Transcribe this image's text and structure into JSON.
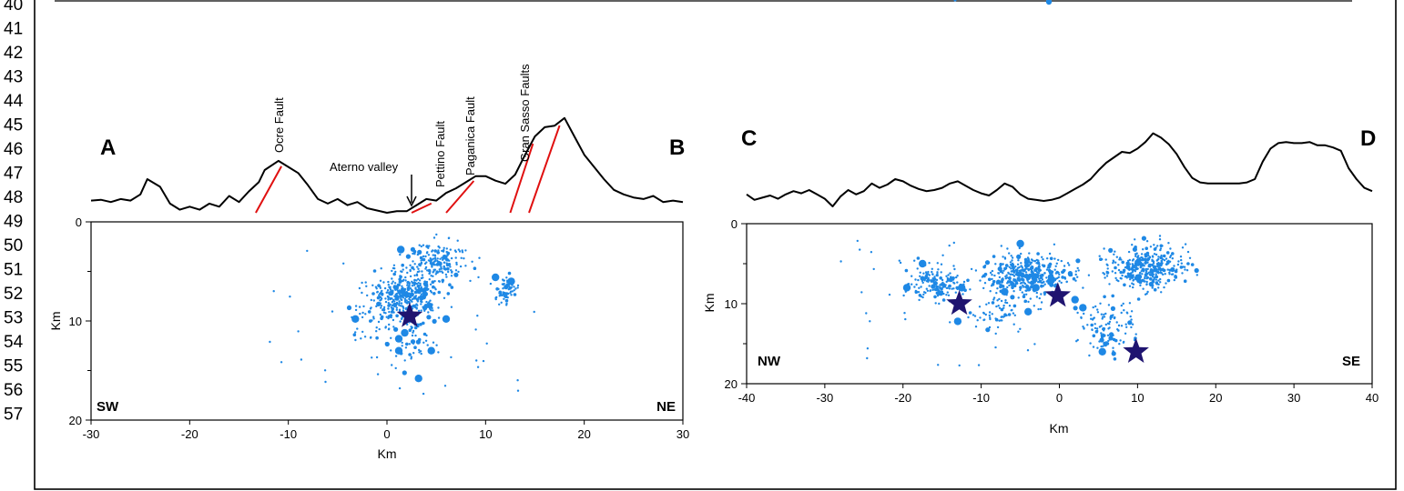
{
  "line_numbers": [
    "40",
    "41",
    "42",
    "43",
    "44",
    "45",
    "46",
    "47",
    "48",
    "49",
    "50",
    "51",
    "52",
    "53",
    "54",
    "55",
    "56",
    "57"
  ],
  "colors": {
    "events": "#1e88e5",
    "mainshock": "#1f1470",
    "fault_trace": "#e01010",
    "profile": "#000000",
    "frame": "#000000"
  },
  "top_fragment": {
    "events": [
      {
        "x": 0,
        "y": 0
      }
    ]
  },
  "chart_data": [
    {
      "type": "scatter",
      "panel": "A-B",
      "start_label": "A",
      "end_label": "B",
      "corner_left": "SW",
      "corner_right": "NE",
      "xlabel": "Km",
      "ylabel": "Km",
      "xlim": [
        -30,
        30
      ],
      "ylim": [
        0,
        20
      ],
      "y_inverted": true,
      "xticks": [
        "-30",
        "-20",
        "-10",
        "0",
        "10",
        "20",
        "30"
      ],
      "yticks": [
        "0",
        "10",
        "20"
      ],
      "grid": false,
      "annotations": {
        "ocre": "Ocre Fault",
        "aterno": "Aterno valley",
        "pettino": "Pettino Fault",
        "paganica": "Paganica Fault",
        "gransasso": "Gran Sasso Faults"
      },
      "fault_traces": [
        {
          "name": "Ocre Fault",
          "x1": -13.3,
          "x2": -10.7
        },
        {
          "name": "Pettino Fault",
          "x1": 2.5,
          "x2": 4.5
        },
        {
          "name": "Paganica Fault",
          "x1": 6.0,
          "x2": 8.8
        },
        {
          "name": "Gran Sasso Faults",
          "x1": 12.5,
          "x2": 14.8
        },
        {
          "name": "Gran Sasso Faults",
          "x1": 14.4,
          "x2": 17.5
        }
      ],
      "aterno_arrow_x": 2.2,
      "topography": [
        [
          -30,
          0.8
        ],
        [
          -29,
          0.85
        ],
        [
          -28,
          0.7
        ],
        [
          -27,
          0.9
        ],
        [
          -26,
          0.8
        ],
        [
          -25,
          1.2
        ],
        [
          -24.3,
          2.2
        ],
        [
          -23,
          1.7
        ],
        [
          -22,
          0.6
        ],
        [
          -21,
          0.2
        ],
        [
          -20,
          0.4
        ],
        [
          -19,
          0.2
        ],
        [
          -18,
          0.6
        ],
        [
          -17,
          0.4
        ],
        [
          -16,
          1.1
        ],
        [
          -15,
          0.7
        ],
        [
          -14,
          1.4
        ],
        [
          -13,
          2.0
        ],
        [
          -12.4,
          2.8
        ],
        [
          -11,
          3.4
        ],
        [
          -10,
          3.0
        ],
        [
          -9,
          2.6
        ],
        [
          -8,
          1.8
        ],
        [
          -7,
          0.9
        ],
        [
          -6,
          0.6
        ],
        [
          -5,
          0.9
        ],
        [
          -4,
          0.5
        ],
        [
          -3,
          0.7
        ],
        [
          -2,
          0.3
        ],
        [
          -1,
          0.15
        ],
        [
          0,
          0.0
        ],
        [
          1,
          0.1
        ],
        [
          2,
          0.1
        ],
        [
          3,
          0.5
        ],
        [
          4,
          0.9
        ],
        [
          5,
          0.8
        ],
        [
          6,
          1.3
        ],
        [
          7,
          1.6
        ],
        [
          8,
          2.0
        ],
        [
          9,
          2.4
        ],
        [
          10,
          2.4
        ],
        [
          11,
          2.1
        ],
        [
          12,
          1.9
        ],
        [
          13,
          2.5
        ],
        [
          14,
          3.8
        ],
        [
          15,
          5.0
        ],
        [
          16,
          5.6
        ],
        [
          17,
          5.7
        ],
        [
          18,
          6.2
        ],
        [
          19,
          5.0
        ],
        [
          20,
          3.8
        ],
        [
          21,
          3.0
        ],
        [
          22,
          2.2
        ],
        [
          23,
          1.5
        ],
        [
          24,
          1.2
        ],
        [
          25,
          1.0
        ],
        [
          26,
          0.9
        ],
        [
          27,
          1.1
        ],
        [
          28,
          0.7
        ],
        [
          29,
          0.8
        ],
        [
          30,
          0.7
        ]
      ],
      "mainshocks": [
        {
          "x": 2.3,
          "y": 9.5
        }
      ],
      "clusters": [
        {
          "cx": 2.0,
          "cy": 7.5,
          "sx": 3.0,
          "sy": 2.2,
          "n": 380
        },
        {
          "cx": 5.0,
          "cy": 4.0,
          "sx": 2.5,
          "sy": 1.8,
          "n": 180
        },
        {
          "cx": 12.0,
          "cy": 7.0,
          "sx": 1.1,
          "sy": 1.2,
          "n": 60
        },
        {
          "cx": 2.0,
          "cy": 12.0,
          "sx": 3.0,
          "sy": 3.0,
          "n": 60
        },
        {
          "cx": -1.0,
          "cy": 9.5,
          "sx": 2.5,
          "sy": 2.5,
          "n": 40
        }
      ],
      "large_events": [
        [
          1.4,
          2.8
        ],
        [
          12.6,
          6.0
        ],
        [
          11.0,
          5.6
        ],
        [
          -3.2,
          9.8
        ],
        [
          1.2,
          11.8
        ],
        [
          1.2,
          13.0
        ],
        [
          1.8,
          11.2
        ],
        [
          3.2,
          15.8
        ],
        [
          4.5,
          13.0
        ],
        [
          6.0,
          9.8
        ]
      ]
    },
    {
      "type": "scatter",
      "panel": "C-D",
      "start_label": "C",
      "end_label": "D",
      "corner_left": "NW",
      "corner_right": "SE",
      "xlabel": "Km",
      "ylabel": "Km",
      "xlim": [
        -40,
        40
      ],
      "ylim": [
        0,
        20
      ],
      "y_inverted": true,
      "xticks": [
        "-40",
        "-30",
        "-20",
        "-10",
        "0",
        "10",
        "20",
        "30",
        "40"
      ],
      "yticks": [
        "0",
        "10",
        "20"
      ],
      "grid": false,
      "topography": [
        [
          -40,
          0.6
        ],
        [
          -39,
          0.1
        ],
        [
          -38,
          0.3
        ],
        [
          -37,
          0.5
        ],
        [
          -36,
          0.2
        ],
        [
          -35,
          0.6
        ],
        [
          -34,
          0.9
        ],
        [
          -33,
          0.7
        ],
        [
          -32,
          1.0
        ],
        [
          -31,
          0.6
        ],
        [
          -30,
          0.2
        ],
        [
          -29,
          -0.5
        ],
        [
          -28,
          0.4
        ],
        [
          -27,
          1.0
        ],
        [
          -26,
          0.6
        ],
        [
          -25,
          0.9
        ],
        [
          -24,
          1.6
        ],
        [
          -23,
          1.2
        ],
        [
          -22,
          1.5
        ],
        [
          -21,
          2.0
        ],
        [
          -20,
          1.8
        ],
        [
          -19,
          1.4
        ],
        [
          -18,
          1.1
        ],
        [
          -17,
          0.9
        ],
        [
          -16,
          1.0
        ],
        [
          -15,
          1.2
        ],
        [
          -14,
          1.6
        ],
        [
          -13,
          1.8
        ],
        [
          -12,
          1.4
        ],
        [
          -11,
          1.0
        ],
        [
          -10,
          0.7
        ],
        [
          -9,
          0.5
        ],
        [
          -8,
          1.0
        ],
        [
          -7,
          1.6
        ],
        [
          -6,
          1.3
        ],
        [
          -5,
          0.6
        ],
        [
          -4,
          0.2
        ],
        [
          -3,
          0.1
        ],
        [
          -2,
          0.0
        ],
        [
          -1,
          0.1
        ],
        [
          0,
          0.3
        ],
        [
          1,
          0.7
        ],
        [
          2,
          1.1
        ],
        [
          3,
          1.5
        ],
        [
          4,
          2.0
        ],
        [
          5,
          2.8
        ],
        [
          6,
          3.5
        ],
        [
          7,
          4.0
        ],
        [
          8,
          4.5
        ],
        [
          9,
          4.4
        ],
        [
          10,
          4.8
        ],
        [
          11,
          5.4
        ],
        [
          12,
          6.2
        ],
        [
          13,
          5.8
        ],
        [
          14,
          5.2
        ],
        [
          15,
          4.3
        ],
        [
          16,
          3.1
        ],
        [
          17,
          2.1
        ],
        [
          18,
          1.7
        ],
        [
          19,
          1.6
        ],
        [
          20,
          1.6
        ],
        [
          21,
          1.6
        ],
        [
          22,
          1.6
        ],
        [
          23,
          1.6
        ],
        [
          24,
          1.7
        ],
        [
          25,
          2.0
        ],
        [
          26,
          3.6
        ],
        [
          27,
          4.8
        ],
        [
          28,
          5.3
        ],
        [
          29,
          5.4
        ],
        [
          30,
          5.3
        ],
        [
          31,
          5.3
        ],
        [
          32,
          5.4
        ],
        [
          33,
          5.1
        ],
        [
          34,
          5.1
        ],
        [
          35,
          4.9
        ],
        [
          36,
          4.6
        ],
        [
          37,
          3.0
        ],
        [
          38,
          2.0
        ],
        [
          39,
          1.2
        ],
        [
          40,
          0.9
        ]
      ],
      "mainshocks": [
        {
          "x": -12.8,
          "y": 10.0
        },
        {
          "x": -0.2,
          "y": 9.0
        },
        {
          "x": 9.8,
          "y": 16.0
        }
      ],
      "clusters": [
        {
          "cx": -16.0,
          "cy": 7.5,
          "sx": 3.5,
          "sy": 2.0,
          "n": 160
        },
        {
          "cx": -4.0,
          "cy": 6.5,
          "sx": 5.0,
          "sy": 2.5,
          "n": 400
        },
        {
          "cx": 11.0,
          "cy": 5.5,
          "sx": 4.5,
          "sy": 2.3,
          "n": 380
        },
        {
          "cx": 6.0,
          "cy": 13.0,
          "sx": 4.0,
          "sy": 2.8,
          "n": 120
        },
        {
          "cx": -8.0,
          "cy": 11.0,
          "sx": 3.0,
          "sy": 2.0,
          "n": 60
        }
      ],
      "large_events": [
        [
          -17.5,
          5.0
        ],
        [
          -19.5,
          8.0
        ],
        [
          -13.0,
          12.2
        ],
        [
          -12.5,
          8.0
        ],
        [
          -4.0,
          11.0
        ],
        [
          -3.0,
          8.0
        ],
        [
          -5.0,
          2.5
        ],
        [
          2.0,
          9.5
        ],
        [
          5.5,
          16.0
        ],
        [
          -7.0,
          8.5
        ],
        [
          3.0,
          10.5
        ],
        [
          -1.0,
          7.0
        ]
      ]
    }
  ]
}
